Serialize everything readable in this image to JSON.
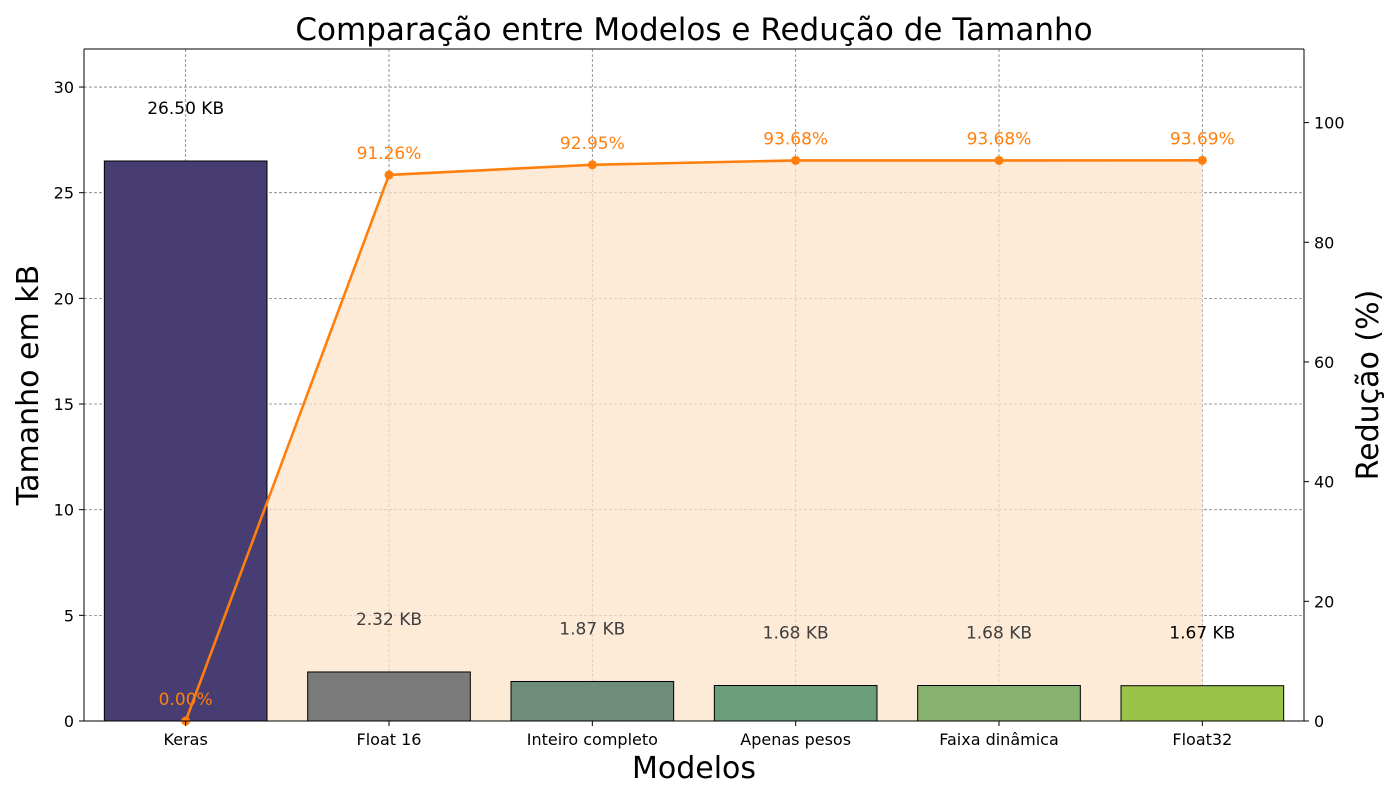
{
  "chart_data": {
    "type": "bar",
    "title": "Comparação entre Modelos e Redução de Tamanho",
    "xlabel": "Modelos",
    "ylabel": "Tamanho em kB",
    "ylabel_right": "Redução (%)",
    "categories": [
      "Keras",
      "Float 16",
      "Inteiro completo",
      "Apenas pesos",
      "Faixa dinâmica",
      "Float32"
    ],
    "series": [
      {
        "axis": "left",
        "type": "bar",
        "values": [
          26.5,
          2.32,
          1.87,
          1.68,
          1.68,
          1.67
        ],
        "labels": [
          "26.50 KB",
          "2.32 KB",
          "1.87 KB",
          "1.68 KB",
          "1.68 KB",
          "1.67 KB"
        ],
        "colors": [
          "#483d73",
          "#7a7a7a",
          "#6e8c7a",
          "#6a9e7a",
          "#88b06e",
          "#9ac34a"
        ]
      },
      {
        "axis": "right",
        "type": "line",
        "values": [
          0.0,
          91.26,
          92.95,
          93.68,
          93.68,
          93.69
        ],
        "labels": [
          "0.00%",
          "91.26%",
          "92.95%",
          "93.68%",
          "93.68%",
          "93.69%"
        ],
        "color": "#ff7f0e",
        "fill": "#fde3c8"
      }
    ],
    "ylim": [
      0,
      31.8
    ],
    "ylim_right": [
      0,
      112.3
    ],
    "yticks": [
      0,
      5,
      10,
      15,
      20,
      25,
      30
    ],
    "yticks_right": [
      0,
      20,
      40,
      60,
      80,
      100
    ],
    "grid": true
  }
}
